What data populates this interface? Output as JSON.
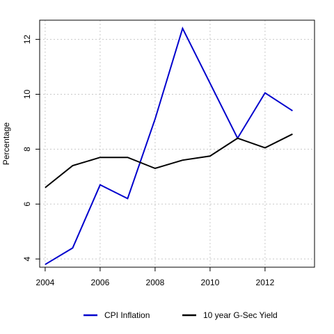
{
  "chart_data": {
    "type": "line",
    "title": "",
    "xlabel": "",
    "ylabel": "Percentage",
    "x": [
      2004,
      2005,
      2006,
      2007,
      2008,
      2009,
      2010,
      2011,
      2012,
      2013
    ],
    "xlim": [
      2003.8,
      2013.8
    ],
    "ylim": [
      3.7,
      12.7
    ],
    "x_ticks": [
      2004,
      2006,
      2008,
      2010,
      2012
    ],
    "y_ticks": [
      4,
      6,
      8,
      10,
      12
    ],
    "grid": true,
    "legend_position": "bottom",
    "series": [
      {
        "name": "CPI Inflation",
        "color": "#0000cd",
        "values": [
          3.8,
          4.4,
          6.7,
          6.2,
          9.1,
          12.4,
          10.4,
          8.4,
          10.05,
          9.4
        ]
      },
      {
        "name": "10 year G-Sec Yield",
        "color": "#000000",
        "values": [
          6.6,
          7.4,
          7.7,
          7.7,
          7.3,
          7.6,
          7.75,
          8.4,
          8.05,
          8.55
        ]
      }
    ]
  }
}
